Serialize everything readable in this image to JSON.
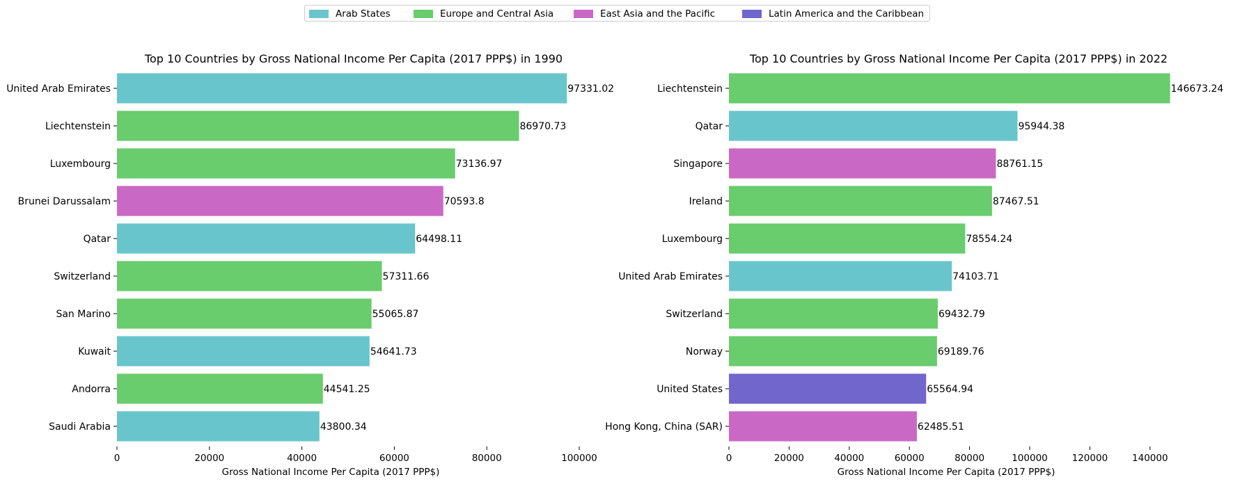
{
  "legend": [
    {
      "label": "Arab States",
      "color": "#69c5cc"
    },
    {
      "label": "Europe and Central Asia",
      "color": "#69cc6d"
    },
    {
      "label": "East Asia and the Pacific",
      "color": "#ca69c5"
    },
    {
      "label": "Latin America and the Caribbean",
      "color": "#7166cc"
    }
  ],
  "chart_data": [
    {
      "type": "bar",
      "orientation": "horizontal",
      "title": "Top 10 Countries by Gross National Income Per Capita (2017 PPP$) in 1990",
      "xlabel": "Gross National Income Per Capita (2017 PPP$)",
      "ylabel": "",
      "xlim": [
        0,
        100000
      ],
      "xticks": [
        0,
        20000,
        40000,
        60000,
        80000,
        100000
      ],
      "categories": [
        "United Arab Emirates",
        "Liechtenstein",
        "Luxembourg",
        "Brunei Darussalam",
        "Qatar",
        "Switzerland",
        "San Marino",
        "Kuwait",
        "Andorra",
        "Saudi Arabia"
      ],
      "values": [
        97331.02,
        86970.73,
        73136.97,
        70593.8,
        64498.11,
        57311.66,
        55065.87,
        54641.73,
        44541.25,
        43800.34
      ],
      "value_labels": [
        "97331.02",
        "86970.73",
        "73136.97",
        "70593.8",
        "64498.11",
        "57311.66",
        "55065.87",
        "54641.73",
        "44541.25",
        "43800.34"
      ],
      "regions": [
        "Arab States",
        "Europe and Central Asia",
        "Europe and Central Asia",
        "East Asia and the Pacific",
        "Arab States",
        "Europe and Central Asia",
        "Europe and Central Asia",
        "Arab States",
        "Europe and Central Asia",
        "Arab States"
      ],
      "grid": false
    },
    {
      "type": "bar",
      "orientation": "horizontal",
      "title": "Top 10 Countries by Gross National Income Per Capita (2017 PPP$) in 2022",
      "xlabel": "Gross National Income Per Capita (2017 PPP$)",
      "ylabel": "",
      "xlim": [
        0,
        150000
      ],
      "xticks": [
        0,
        20000,
        40000,
        60000,
        80000,
        100000,
        120000,
        140000
      ],
      "categories": [
        "Liechtenstein",
        "Qatar",
        "Singapore",
        "Ireland",
        "Luxembourg",
        "United Arab Emirates",
        "Switzerland",
        "Norway",
        "United States",
        "Hong Kong, China (SAR)"
      ],
      "values": [
        146673.24,
        95944.38,
        88761.15,
        87467.51,
        78554.24,
        74103.71,
        69432.79,
        69189.76,
        65564.94,
        62485.51
      ],
      "value_labels": [
        "146673.24",
        "95944.38",
        "88761.15",
        "87467.51",
        "78554.24",
        "74103.71",
        "69432.79",
        "69189.76",
        "65564.94",
        "62485.51"
      ],
      "regions": [
        "Europe and Central Asia",
        "Arab States",
        "East Asia and the Pacific",
        "Europe and Central Asia",
        "Europe and Central Asia",
        "Arab States",
        "Europe and Central Asia",
        "Europe and Central Asia",
        "Latin America and the Caribbean",
        "East Asia and the Pacific"
      ],
      "grid": false
    }
  ]
}
